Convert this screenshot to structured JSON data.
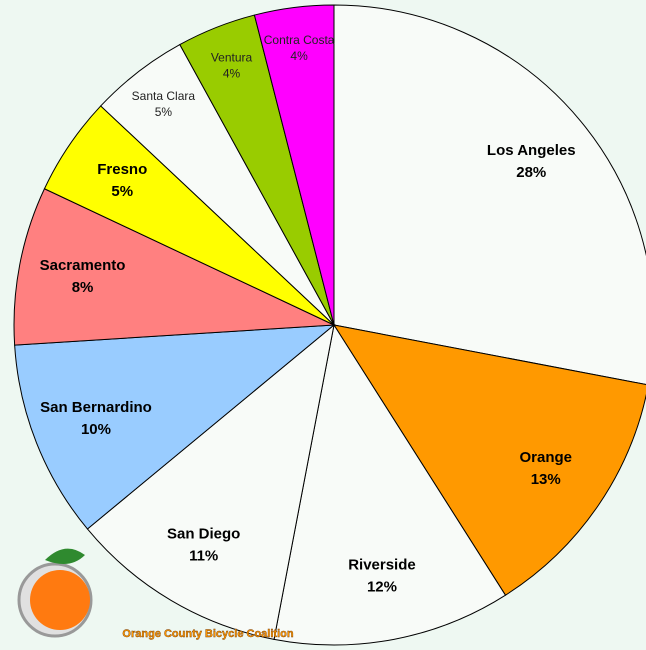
{
  "chart_data": {
    "type": "pie",
    "categories": [
      "Los Angeles",
      "Orange",
      "Riverside",
      "San Diego",
      "San Bernardino",
      "Sacramento",
      "Fresno",
      "Santa Clara",
      "Ventura",
      "Contra Costa"
    ],
    "values": [
      28,
      13,
      12,
      11,
      10,
      8,
      5,
      5,
      4,
      4
    ],
    "value_labels": [
      "28%",
      "13%",
      "12%",
      "11%",
      "10%",
      "8%",
      "5%",
      "5%",
      "4%",
      "4%"
    ],
    "colors": [
      "#f8fbf8",
      "#ff9900",
      "#f8fbf8",
      "#f8fbf8",
      "#99ccff",
      "#ff8080",
      "#ffff00",
      "#f8fbf8",
      "#99cc00",
      "#ff00ff"
    ],
    "logo_text": "Orange County Bicycle Coalition"
  }
}
